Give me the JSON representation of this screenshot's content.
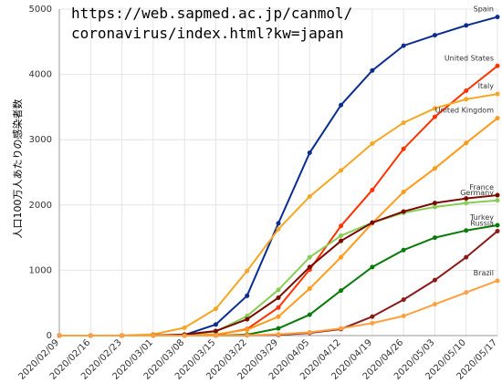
{
  "chart_data": {
    "type": "line",
    "annotations": [
      "https://web.sapmed.ac.jp/canmol/",
      "coronavirus/index.html?kw=japan"
    ],
    "y_label": "人口100万人あたりの感染者数",
    "x": [
      "2020/02/09",
      "2020/02/16",
      "2020/02/23",
      "2020/03/01",
      "2020/03/08",
      "2020/03/15",
      "2020/03/22",
      "2020/03/29",
      "2020/04/05",
      "2020/04/12",
      "2020/04/19",
      "2020/04/26",
      "2020/05/03",
      "2020/05/10",
      "2020/05/17"
    ],
    "ylim": [
      0,
      5000
    ],
    "yticks": [
      0,
      1000,
      2000,
      3000,
      4000,
      5000
    ],
    "grid": true,
    "series": [
      {
        "name": "Spain",
        "color": "#0a2d8f",
        "values": [
          0,
          0,
          0,
          1,
          10,
          170,
          610,
          1720,
          2800,
          3530,
          4060,
          4440,
          4600,
          4750,
          4880
        ]
      },
      {
        "name": "United States",
        "color": "#ff3300",
        "values": [
          0,
          0,
          0,
          0,
          2,
          10,
          100,
          430,
          1010,
          1680,
          2230,
          2860,
          3350,
          3750,
          4130
        ]
      },
      {
        "name": "Italy",
        "color": "#f5a623",
        "values": [
          0,
          0,
          2,
          20,
          120,
          410,
          990,
          1630,
          2130,
          2530,
          2940,
          3260,
          3480,
          3620,
          3700
        ]
      },
      {
        "name": "United Kingdom",
        "color": "#ff9a1a",
        "values": [
          0,
          0,
          0,
          0,
          4,
          18,
          90,
          290,
          720,
          1200,
          1720,
          2200,
          2560,
          2950,
          3330
        ]
      },
      {
        "name": "Germany",
        "color": "#88cc55",
        "values": [
          0,
          0,
          0,
          1,
          10,
          60,
          300,
          700,
          1200,
          1530,
          1730,
          1880,
          1970,
          2030,
          2070
        ]
      },
      {
        "name": "France",
        "color": "#7a0a00",
        "values": [
          0,
          0,
          0,
          2,
          15,
          70,
          250,
          580,
          1050,
          1450,
          1730,
          1900,
          2030,
          2100,
          2150
        ]
      },
      {
        "name": "Turkey",
        "color": "#0a7a0a",
        "values": [
          0,
          0,
          0,
          0,
          0,
          1,
          15,
          110,
          320,
          690,
          1050,
          1310,
          1500,
          1610,
          1690
        ]
      },
      {
        "name": "Russia",
        "color": "#8b1a1a",
        "values": [
          0,
          0,
          0,
          0,
          0,
          1,
          3,
          10,
          40,
          100,
          290,
          550,
          850,
          1200,
          1600
        ]
      },
      {
        "name": "Brazil",
        "color": "#ffa040",
        "values": [
          0,
          0,
          0,
          0,
          0,
          1,
          5,
          20,
          50,
          110,
          190,
          300,
          480,
          660,
          840
        ]
      }
    ]
  }
}
